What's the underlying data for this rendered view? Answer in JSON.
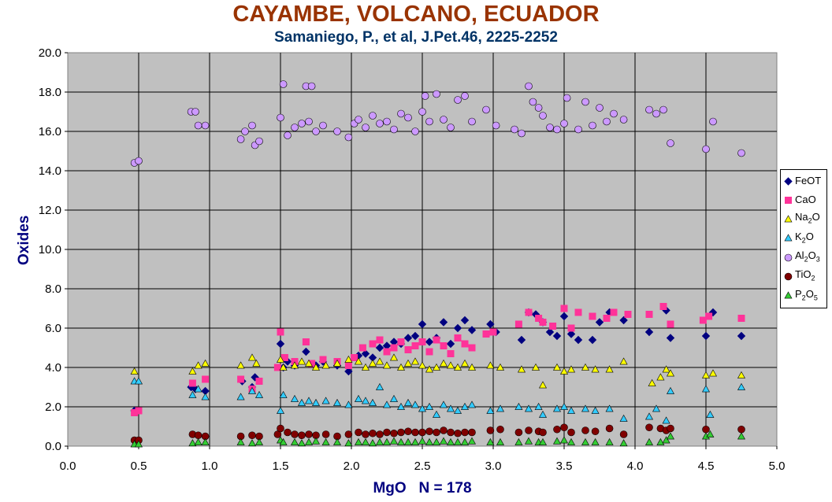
{
  "chart_data": {
    "type": "scatter",
    "title": "CAYAMBE, VOLCANO, ECUADOR",
    "subtitle": "Samaniego, P., et al, J.Pet.46, 2225-2252",
    "xlabel": "MgO   N = 178",
    "ylabel": "Oxides",
    "xlim": [
      0,
      5
    ],
    "ylim": [
      0,
      20
    ],
    "xticks": [
      "0.0",
      "0.5",
      "1.0",
      "1.5",
      "2.0",
      "2.5",
      "3.0",
      "3.5",
      "4.0",
      "4.5",
      "5.0"
    ],
    "yticks": [
      "0.0",
      "2.0",
      "4.0",
      "6.0",
      "8.0",
      "10.0",
      "12.0",
      "14.0",
      "16.0",
      "18.0",
      "20.0"
    ],
    "grid": true,
    "plot_background": "#c0c0c0",
    "legend_position": "right",
    "series": [
      {
        "name": "FeOT",
        "label_base": "FeOT",
        "label_parts": [
          [
            "FeOT",
            false
          ]
        ],
        "marker": "diamond",
        "color": "#000080",
        "x": [
          0.47,
          0.87,
          0.9,
          0.97,
          1.23,
          1.3,
          1.32,
          1.5,
          1.52,
          1.55,
          1.6,
          1.68,
          1.75,
          1.8,
          1.9,
          1.98,
          2.05,
          2.1,
          2.15,
          2.2,
          2.25,
          2.3,
          2.35,
          2.4,
          2.45,
          2.5,
          2.55,
          2.6,
          2.65,
          2.7,
          2.75,
          2.8,
          2.85,
          2.98,
          3.02,
          3.2,
          3.25,
          3.3,
          3.35,
          3.4,
          3.45,
          3.5,
          3.55,
          3.6,
          3.7,
          3.75,
          3.82,
          3.92,
          4.1,
          4.22,
          4.25,
          4.5,
          4.55,
          4.75
        ],
        "y": [
          1.8,
          3.0,
          2.9,
          2.8,
          3.3,
          3.0,
          3.5,
          5.2,
          4.0,
          4.3,
          4.1,
          4.8,
          4.1,
          4.3,
          4.1,
          3.8,
          4.6,
          4.7,
          4.5,
          5.0,
          5.1,
          5.3,
          5.2,
          5.5,
          5.6,
          6.2,
          5.3,
          5.5,
          6.3,
          5.2,
          6.0,
          6.4,
          5.9,
          6.2,
          5.8,
          5.4,
          6.8,
          6.7,
          6.3,
          5.8,
          5.6,
          6.6,
          5.7,
          5.4,
          5.4,
          6.3,
          6.8,
          6.4,
          5.8,
          6.9,
          5.5,
          5.6,
          6.8,
          5.6
        ]
      },
      {
        "name": "CaO",
        "label_base": "CaO",
        "label_parts": [
          [
            "CaO",
            false
          ]
        ],
        "marker": "square",
        "color": "#ff3399",
        "x": [
          0.47,
          0.5,
          0.88,
          0.97,
          1.22,
          1.3,
          1.35,
          1.48,
          1.5,
          1.53,
          1.6,
          1.68,
          1.72,
          1.8,
          1.9,
          1.98,
          2.02,
          2.08,
          2.15,
          2.2,
          2.25,
          2.3,
          2.35,
          2.4,
          2.45,
          2.5,
          2.55,
          2.6,
          2.65,
          2.7,
          2.75,
          2.8,
          2.85,
          2.95,
          3.0,
          3.18,
          3.25,
          3.32,
          3.35,
          3.42,
          3.5,
          3.55,
          3.6,
          3.7,
          3.8,
          3.85,
          3.95,
          4.1,
          4.2,
          4.25,
          4.48,
          4.52,
          4.75
        ],
        "y": [
          1.7,
          1.8,
          3.2,
          3.4,
          3.4,
          2.9,
          3.3,
          4.0,
          5.8,
          4.5,
          4.3,
          5.3,
          4.2,
          4.4,
          4.3,
          4.1,
          4.5,
          5.0,
          5.2,
          5.4,
          4.8,
          5.0,
          5.3,
          4.9,
          5.1,
          5.3,
          4.8,
          5.4,
          5.1,
          4.7,
          5.5,
          5.2,
          5.0,
          5.7,
          5.8,
          6.2,
          6.8,
          6.5,
          6.3,
          6.1,
          7.0,
          6.0,
          6.8,
          6.6,
          6.5,
          6.8,
          6.7,
          6.7,
          7.1,
          6.2,
          6.4,
          6.6,
          6.5
        ]
      },
      {
        "name": "Na2O",
        "label_base": "Na2O",
        "label_parts": [
          [
            "Na",
            false
          ],
          [
            "2",
            true
          ],
          [
            "O",
            false
          ]
        ],
        "marker": "triangle",
        "color": "#ffff00",
        "x": [
          0.47,
          0.88,
          0.92,
          0.97,
          1.22,
          1.3,
          1.33,
          1.5,
          1.52,
          1.6,
          1.65,
          1.7,
          1.75,
          1.82,
          1.9,
          1.98,
          2.05,
          2.1,
          2.15,
          2.2,
          2.25,
          2.3,
          2.35,
          2.4,
          2.45,
          2.5,
          2.55,
          2.6,
          2.65,
          2.7,
          2.75,
          2.8,
          2.85,
          2.98,
          3.05,
          3.2,
          3.3,
          3.35,
          3.45,
          3.5,
          3.55,
          3.65,
          3.72,
          3.82,
          3.92,
          4.12,
          4.18,
          4.22,
          4.25,
          4.5,
          4.55,
          4.75
        ],
        "y": [
          3.8,
          3.8,
          4.1,
          4.2,
          4.1,
          4.5,
          4.2,
          4.4,
          4.0,
          4.1,
          4.3,
          4.2,
          4.0,
          4.1,
          4.2,
          4.4,
          4.3,
          4.0,
          4.2,
          4.3,
          4.1,
          4.5,
          4.0,
          4.2,
          4.3,
          4.1,
          3.9,
          4.0,
          4.2,
          4.1,
          4.0,
          4.2,
          4.0,
          4.1,
          4.0,
          3.9,
          4.0,
          3.1,
          4.0,
          3.8,
          3.9,
          4.0,
          3.9,
          3.9,
          4.3,
          3.2,
          3.5,
          3.9,
          3.7,
          3.6,
          3.7,
          3.6
        ]
      },
      {
        "name": "K2O",
        "label_base": "K2O",
        "label_parts": [
          [
            "K",
            false
          ],
          [
            "2",
            true
          ],
          [
            "O",
            false
          ]
        ],
        "marker": "triangle",
        "color": "#33ccff",
        "x": [
          0.47,
          0.5,
          0.88,
          0.92,
          0.97,
          1.22,
          1.3,
          1.35,
          1.5,
          1.52,
          1.6,
          1.65,
          1.7,
          1.75,
          1.82,
          1.9,
          1.98,
          2.05,
          2.1,
          2.15,
          2.2,
          2.25,
          2.3,
          2.35,
          2.4,
          2.45,
          2.5,
          2.55,
          2.6,
          2.65,
          2.7,
          2.75,
          2.8,
          2.85,
          2.98,
          3.05,
          3.18,
          3.25,
          3.32,
          3.35,
          3.45,
          3.5,
          3.55,
          3.65,
          3.72,
          3.82,
          3.92,
          4.1,
          4.15,
          4.22,
          4.25,
          4.5,
          4.53,
          4.75
        ],
        "y": [
          3.3,
          3.3,
          2.6,
          2.9,
          2.5,
          2.5,
          2.8,
          2.6,
          1.8,
          2.6,
          2.4,
          2.2,
          2.3,
          2.2,
          2.3,
          2.2,
          2.1,
          2.4,
          2.3,
          2.2,
          3.0,
          2.1,
          2.4,
          2.0,
          2.2,
          2.1,
          1.9,
          2.0,
          1.6,
          2.1,
          1.9,
          1.8,
          2.0,
          2.1,
          1.8,
          1.9,
          2.0,
          1.9,
          2.0,
          1.6,
          1.9,
          2.0,
          1.8,
          1.9,
          1.8,
          1.9,
          1.4,
          1.5,
          1.9,
          1.3,
          2.8,
          2.9,
          1.6,
          3.0
        ]
      },
      {
        "name": "Al2O3",
        "label_base": "Al2O3",
        "label_parts": [
          [
            "Al",
            false
          ],
          [
            "2",
            true
          ],
          [
            "O",
            false
          ],
          [
            "3",
            true
          ]
        ],
        "marker": "circle",
        "color": "#cc99ff",
        "x": [
          0.47,
          0.5,
          0.87,
          0.9,
          0.92,
          0.97,
          1.22,
          1.25,
          1.3,
          1.32,
          1.35,
          1.5,
          1.52,
          1.55,
          1.6,
          1.65,
          1.68,
          1.7,
          1.72,
          1.75,
          1.8,
          1.9,
          1.98,
          2.02,
          2.05,
          2.1,
          2.15,
          2.2,
          2.25,
          2.3,
          2.35,
          2.4,
          2.45,
          2.5,
          2.52,
          2.55,
          2.6,
          2.65,
          2.7,
          2.75,
          2.8,
          2.85,
          2.95,
          3.02,
          3.15,
          3.2,
          3.25,
          3.28,
          3.32,
          3.35,
          3.4,
          3.45,
          3.5,
          3.52,
          3.6,
          3.65,
          3.7,
          3.75,
          3.8,
          3.85,
          3.92,
          4.1,
          4.15,
          4.2,
          4.25,
          4.5,
          4.55,
          4.75
        ],
        "y": [
          14.4,
          14.5,
          17.0,
          17.0,
          16.3,
          16.3,
          15.6,
          16.0,
          16.3,
          15.3,
          15.5,
          16.7,
          18.4,
          15.8,
          16.2,
          16.4,
          18.3,
          16.5,
          18.3,
          16.0,
          16.3,
          16.0,
          15.7,
          16.4,
          16.6,
          16.2,
          16.8,
          16.4,
          16.5,
          16.1,
          16.9,
          16.7,
          16.0,
          17.0,
          17.8,
          16.5,
          17.9,
          16.6,
          16.2,
          17.6,
          17.8,
          16.5,
          17.1,
          16.3,
          16.1,
          15.9,
          18.3,
          17.5,
          17.2,
          16.8,
          16.2,
          16.1,
          16.4,
          17.7,
          16.1,
          17.5,
          16.3,
          17.2,
          16.5,
          16.9,
          16.6,
          17.1,
          16.9,
          17.1,
          15.4,
          15.1,
          16.5,
          14.9
        ]
      },
      {
        "name": "TiO2",
        "label_base": "TiO2",
        "label_parts": [
          [
            "TiO",
            false
          ],
          [
            "2",
            true
          ]
        ],
        "marker": "circle",
        "color": "#800000",
        "x": [
          0.47,
          0.5,
          0.88,
          0.92,
          0.97,
          1.22,
          1.3,
          1.35,
          1.48,
          1.5,
          1.55,
          1.6,
          1.65,
          1.7,
          1.75,
          1.82,
          1.9,
          1.98,
          2.05,
          2.1,
          2.15,
          2.2,
          2.25,
          2.3,
          2.35,
          2.4,
          2.45,
          2.5,
          2.55,
          2.6,
          2.65,
          2.7,
          2.75,
          2.8,
          2.85,
          2.98,
          3.05,
          3.18,
          3.25,
          3.32,
          3.35,
          3.45,
          3.5,
          3.55,
          3.65,
          3.72,
          3.82,
          3.92,
          4.1,
          4.18,
          4.22,
          4.25,
          4.5,
          4.75
        ],
        "y": [
          0.3,
          0.3,
          0.6,
          0.55,
          0.5,
          0.5,
          0.55,
          0.5,
          0.6,
          0.9,
          0.7,
          0.6,
          0.55,
          0.6,
          0.55,
          0.6,
          0.5,
          0.6,
          0.7,
          0.6,
          0.65,
          0.6,
          0.7,
          0.65,
          0.7,
          0.75,
          0.7,
          0.7,
          0.75,
          0.7,
          0.8,
          0.7,
          0.65,
          0.7,
          0.7,
          0.8,
          0.85,
          0.7,
          0.8,
          0.75,
          0.7,
          0.85,
          0.95,
          0.7,
          0.8,
          0.75,
          0.9,
          0.6,
          0.95,
          0.9,
          0.8,
          0.9,
          0.85,
          0.85
        ]
      },
      {
        "name": "P2O5",
        "label_base": "P2O5",
        "label_parts": [
          [
            "P",
            false
          ],
          [
            "2",
            true
          ],
          [
            "O",
            false
          ],
          [
            "5",
            true
          ]
        ],
        "marker": "triangle",
        "color": "#33cc33",
        "x": [
          0.47,
          0.5,
          0.88,
          0.92,
          0.97,
          1.22,
          1.3,
          1.35,
          1.5,
          1.52,
          1.6,
          1.65,
          1.7,
          1.75,
          1.82,
          1.9,
          1.98,
          2.05,
          2.1,
          2.15,
          2.2,
          2.25,
          2.3,
          2.35,
          2.4,
          2.45,
          2.5,
          2.55,
          2.6,
          2.65,
          2.7,
          2.75,
          2.8,
          2.85,
          2.98,
          3.05,
          3.18,
          3.25,
          3.32,
          3.35,
          3.45,
          3.5,
          3.55,
          3.65,
          3.72,
          3.82,
          3.92,
          4.1,
          4.18,
          4.22,
          4.25,
          4.5,
          4.53,
          4.75
        ],
        "y": [
          0.1,
          0.1,
          0.15,
          0.2,
          0.2,
          0.2,
          0.15,
          0.2,
          0.3,
          0.2,
          0.2,
          0.15,
          0.2,
          0.25,
          0.2,
          0.2,
          0.15,
          0.2,
          0.2,
          0.15,
          0.2,
          0.2,
          0.25,
          0.2,
          0.2,
          0.2,
          0.25,
          0.2,
          0.2,
          0.25,
          0.2,
          0.2,
          0.2,
          0.25,
          0.2,
          0.2,
          0.2,
          0.25,
          0.2,
          0.2,
          0.25,
          0.3,
          0.2,
          0.2,
          0.2,
          0.2,
          0.15,
          0.2,
          0.2,
          0.3,
          0.5,
          0.5,
          0.6,
          0.5
        ]
      }
    ]
  }
}
